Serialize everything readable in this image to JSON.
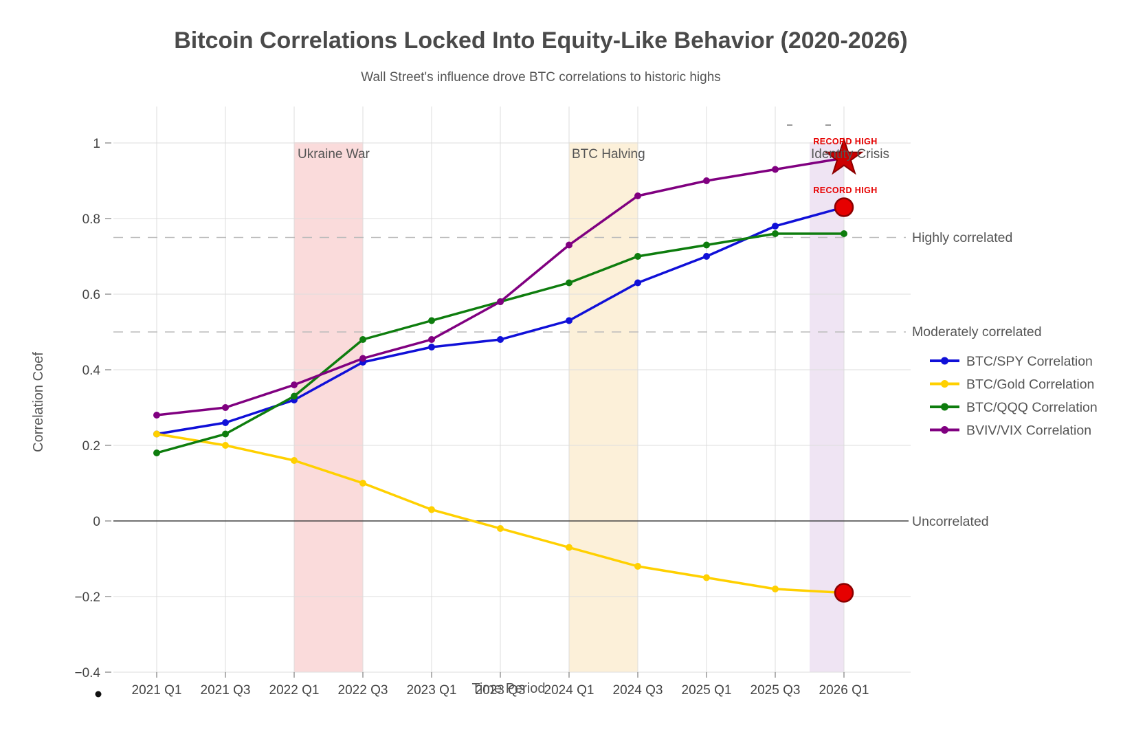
{
  "title": "Bitcoin Correlations Locked Into Equity-Like Behavior (2020-2026)",
  "subtitle": "Wall Street's influence drove BTC correlations to historic highs",
  "axes": {
    "x_label": "Time Period",
    "y_label": "Correlation Coef",
    "y_tick_labels": [
      "1",
      "0.8",
      "0.6",
      "0.4",
      "0.2",
      "0",
      "−0.2",
      "−0.4"
    ],
    "y_tick_values": [
      1,
      0.8,
      0.6,
      0.4,
      0.2,
      0,
      -0.2,
      -0.4
    ]
  },
  "chart_data": {
    "type": "line",
    "categories": [
      "2021 Q1",
      "2021 Q3",
      "2022 Q1",
      "2022 Q3",
      "2023 Q1",
      "2023 Q3",
      "2024 Q1",
      "2024 Q3",
      "2025 Q1",
      "2025 Q3",
      "2026 Q1"
    ],
    "series": [
      {
        "name": "BTC/SPY Correlation",
        "color": "#1010d8",
        "values": [
          0.23,
          0.26,
          0.32,
          0.42,
          0.46,
          0.48,
          0.53,
          0.63,
          0.7,
          0.78,
          0.83
        ]
      },
      {
        "name": "BTC/Gold Correlation",
        "color": "#ffd000",
        "values": [
          0.23,
          0.2,
          0.16,
          0.1,
          0.03,
          -0.02,
          -0.07,
          -0.12,
          -0.15,
          -0.18,
          -0.19
        ]
      },
      {
        "name": "BTC/QQQ Correlation",
        "color": "#0e7d0e",
        "values": [
          0.18,
          0.23,
          0.33,
          0.48,
          0.53,
          0.58,
          0.63,
          0.7,
          0.73,
          0.76,
          0.76
        ]
      },
      {
        "name": "BVIV/VIX Correlation",
        "color": "#800080",
        "values": [
          0.28,
          0.3,
          0.36,
          0.43,
          0.48,
          0.58,
          0.73,
          0.86,
          0.9,
          0.93,
          0.96
        ]
      }
    ],
    "ylim": [
      -0.4,
      1.0
    ],
    "grid": true,
    "legend_position": "right",
    "thresholds": [
      {
        "value": 0.75,
        "label": "Highly correlated",
        "style": "dashed"
      },
      {
        "value": 0.5,
        "label": "Moderately correlated",
        "style": "dashed"
      },
      {
        "value": 0,
        "label": "Uncorrelated",
        "style": "solid"
      }
    ],
    "bands": [
      {
        "label": "Ukraine War",
        "from_index": 2,
        "to_index": 3,
        "color": "#fadbdb"
      },
      {
        "label": "BTC Halving",
        "from_index": 6,
        "to_index": 7,
        "color": "#fcf0d9"
      },
      {
        "label": "Identity Crisis",
        "from_index": 9.5,
        "to_index": 10,
        "color": "#efe4f3"
      }
    ],
    "annotations": [
      {
        "text": "RECORD HIGH",
        "series": "BVIV/VIX Correlation",
        "category": "2026 Q1",
        "value": 0.96,
        "marker": "star"
      },
      {
        "text": "RECORD HIGH",
        "series": "BTC/SPY Correlation",
        "category": "2026 Q1",
        "value": 0.83,
        "marker": "circle"
      },
      {
        "text": "",
        "series": "BTC/Gold Correlation",
        "category": "2026 Q1",
        "value": -0.19,
        "marker": "circle"
      }
    ],
    "marker_colors": {
      "fill": "#e60000",
      "stroke": "#8b0000"
    }
  }
}
